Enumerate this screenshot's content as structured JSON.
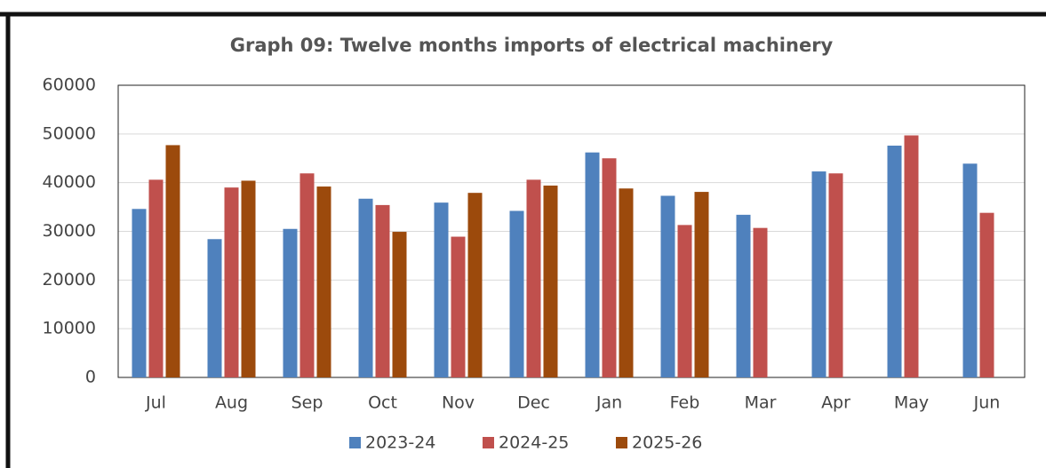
{
  "chart_data": {
    "type": "bar",
    "title": "Graph 09: Twelve months imports of electrical machinery",
    "categories": [
      "Jul",
      "Aug",
      "Sep",
      "Oct",
      "Nov",
      "Dec",
      "Jan",
      "Feb",
      "Mar",
      "Apr",
      "May",
      "Jun"
    ],
    "series": [
      {
        "name": "2023-24",
        "color": "#4f81bd",
        "values": [
          34600,
          28400,
          30500,
          36700,
          35900,
          34200,
          46200,
          37300,
          33400,
          42300,
          47600,
          43900
        ]
      },
      {
        "name": "2024-25",
        "color": "#c0504d",
        "values": [
          40600,
          39000,
          41900,
          35400,
          28900,
          40600,
          45000,
          31300,
          30700,
          41900,
          49700,
          33800
        ]
      },
      {
        "name": "2025-26",
        "color": "#9c4a0c",
        "values": [
          47700,
          40400,
          39200,
          29900,
          37900,
          39400,
          38800,
          38100,
          null,
          null,
          null,
          null
        ]
      }
    ],
    "ylim": [
      0,
      60000
    ],
    "yticks": [
      0,
      10000,
      20000,
      30000,
      40000,
      50000,
      60000
    ],
    "grid": true,
    "legend": "bottom"
  }
}
